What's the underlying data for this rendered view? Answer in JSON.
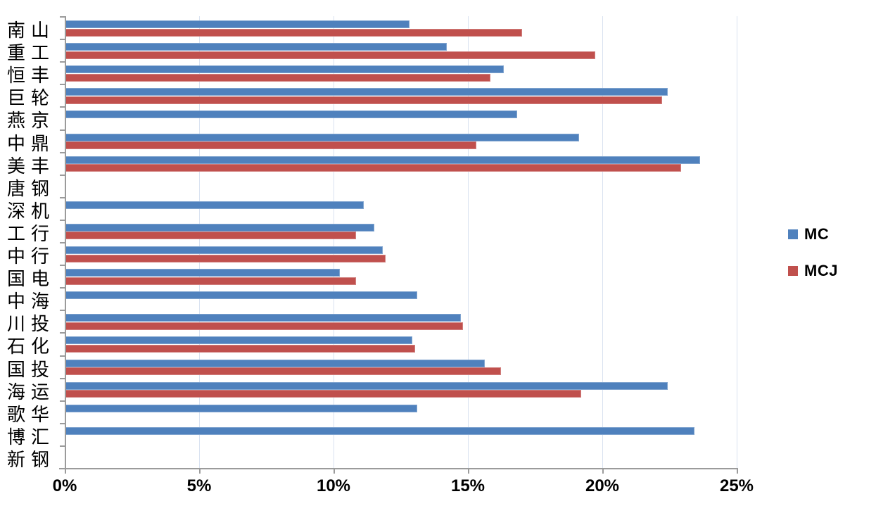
{
  "chart_data": {
    "type": "bar",
    "orientation": "horizontal",
    "title": "",
    "categories": [
      "南山",
      "重工",
      "恒丰",
      "巨轮",
      "燕京",
      "中鼎",
      "美丰",
      "唐钢",
      "深机",
      "工行",
      "中行",
      "国电",
      "中海",
      "川投",
      "石化",
      "国投",
      "海运",
      "歌华",
      "博汇",
      "新钢"
    ],
    "series": [
      {
        "name": "MC",
        "color": "#4F81BD",
        "values": [
          12.8,
          14.2,
          16.3,
          22.4,
          16.8,
          19.1,
          23.6,
          null,
          11.1,
          11.5,
          11.8,
          10.2,
          13.1,
          14.7,
          12.9,
          15.6,
          22.4,
          13.1,
          23.4,
          null
        ]
      },
      {
        "name": "MCJ",
        "color": "#C0504D",
        "values": [
          17.0,
          19.7,
          15.8,
          22.2,
          null,
          15.3,
          22.9,
          null,
          null,
          10.8,
          11.9,
          10.8,
          null,
          14.8,
          13.0,
          16.2,
          19.2,
          null,
          null,
          null
        ]
      }
    ],
    "x_axis": {
      "min": 0,
      "max": 25,
      "unit": "%",
      "tick_labels": [
        "0%",
        "5%",
        "10%",
        "15%",
        "20%",
        "25%"
      ]
    },
    "legend": {
      "position": "right",
      "entries": [
        "MC",
        "MCJ"
      ]
    },
    "grid": true,
    "colors": {
      "series_mc": "#4F81BD",
      "series_mcj": "#C0504D",
      "gridline": "#D9E2F0",
      "axis": "#9B9B9B",
      "text": "#000000",
      "background": "#FFFFFF"
    }
  }
}
